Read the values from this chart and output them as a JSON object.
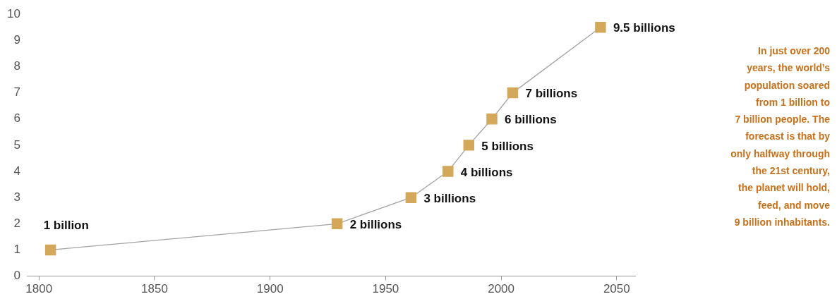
{
  "chart_data": {
    "type": "line",
    "x": [
      1805,
      1929,
      1961,
      1977,
      1986,
      1996,
      2005,
      2043
    ],
    "series": [
      {
        "color": "#d4a85a",
        "values": [
          1,
          2,
          3,
          4,
          5,
          6,
          7,
          9.5
        ],
        "value_labels": [
          "1 billion",
          "2 billions",
          "3 billions",
          "4 billions",
          "5 billions",
          "6 billions",
          "7 billions",
          "9.5 billions"
        ]
      }
    ],
    "xlim": [
      1795,
      2058
    ],
    "xticks": [
      1800,
      1850,
      1900,
      1950,
      2000,
      2050
    ],
    "ylim": [
      0,
      10
    ],
    "yticks": [
      0,
      1,
      2,
      3,
      4,
      5,
      6,
      7,
      8,
      9,
      10
    ],
    "grid": false,
    "legend": false,
    "marker": "square",
    "line_style": "solid",
    "annotations": [
      "In just over 200\nyears, the world’s\npopulation soared\nfrom 1 billion to\n7 billion people. The\nforecast is that by\nonly halfway through\nthe 21st century,\nthe planet will hold,\nfeed, and move\n9 billion inhabitants."
    ]
  }
}
